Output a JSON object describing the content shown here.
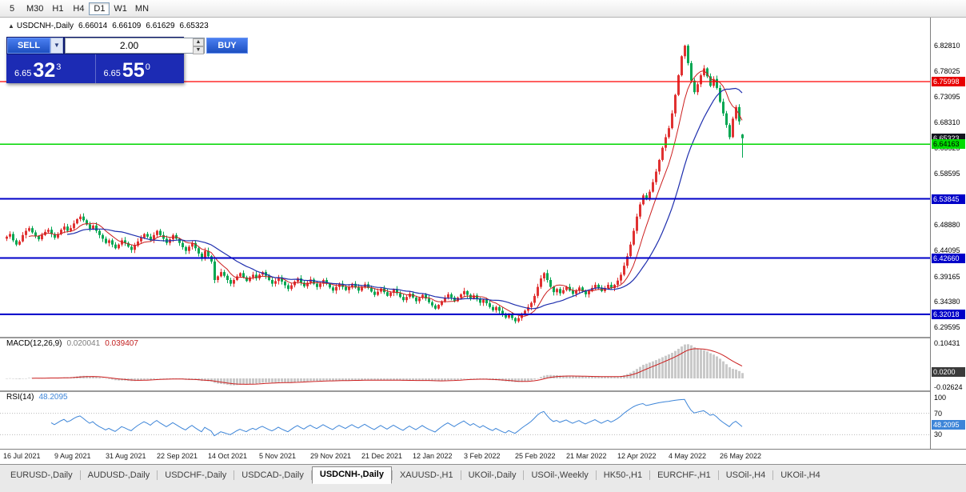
{
  "toolbar": {
    "timeframes": [
      "5",
      "M30",
      "H1",
      "H4",
      "D1",
      "W1",
      "MN"
    ],
    "active": "D1"
  },
  "chart_header": {
    "arrow": "▲",
    "title": "USDCNH-,Daily",
    "open": "6.66014",
    "high": "6.66109",
    "low": "6.61629",
    "close": "6.65323"
  },
  "trade_panel": {
    "sell_label": "SELL",
    "buy_label": "BUY",
    "volume": "2.00",
    "dropdown_glyph": "▼",
    "spin_up_glyph": "▲",
    "spin_down_glyph": "▼",
    "sell_price": {
      "prefix": "6.65",
      "big": "32",
      "sup": "3"
    },
    "buy_price": {
      "prefix": "6.65",
      "big": "55",
      "sup": "0"
    }
  },
  "price_axis": {
    "ticks": [
      "6.82810",
      "6.78025",
      "6.73095",
      "6.68310",
      "6.63525",
      "6.58595",
      "6.53845",
      "6.48880",
      "6.44095",
      "6.39165",
      "6.34380",
      "6.29595"
    ],
    "highlights": [
      {
        "text": "6.75998",
        "value": 6.75998,
        "style": "red"
      },
      {
        "text": "6.65323",
        "value": 6.65323,
        "style": "dark"
      },
      {
        "text": "6.64163",
        "value": 6.64163,
        "style": "green"
      },
      {
        "text": "6.53845",
        "value": 6.53845,
        "style": "blue"
      },
      {
        "text": "6.42660",
        "value": 6.4266,
        "style": "blue"
      },
      {
        "text": "6.32018",
        "value": 6.32018,
        "style": "blue"
      }
    ]
  },
  "macd_panel": {
    "label": "MACD(12,26,9)",
    "main_value": "0.020041",
    "signal_value": "0.039407",
    "axis_max": "0.10431",
    "axis_min": "-0.02624",
    "axis_current": "0.0200"
  },
  "rsi_panel": {
    "label": "RSI(14)",
    "value": "48.2095",
    "axis_ticks": [
      "100",
      "70",
      "30"
    ],
    "axis_current": "48.2095"
  },
  "tabs": {
    "items": [
      "EURUSD-,Daily",
      "AUDUSD-,Daily",
      "USDCHF-,Daily",
      "USDCAD-,Daily",
      "USDCNH-,Daily",
      "XAUUSD-,H1",
      "UKOil-,Daily",
      "USOil-,Weekly",
      "HK50-,H1",
      "EURCHF-,H1",
      "USOil-,H4",
      "UKOil-,H4"
    ],
    "active": "USDCNH-,Daily"
  },
  "chart_data": {
    "type": "candlestick",
    "title": "USDCNH-,Daily",
    "dates": [
      "16 Jul 2021",
      "9 Aug 2021",
      "31 Aug 2021",
      "22 Sep 2021",
      "14 Oct 2021",
      "5 Nov 2021",
      "29 Nov 2021",
      "21 Dec 2021",
      "12 Jan 2022",
      "3 Feb 2022",
      "25 Feb 2022",
      "21 Mar 2022",
      "12 Apr 2022",
      "4 May 2022",
      "26 May 2022"
    ],
    "closes": [
      6.467,
      6.472,
      6.46,
      6.452,
      6.458,
      6.47,
      6.478,
      6.483,
      6.475,
      6.468,
      6.462,
      6.47,
      6.476,
      6.48,
      6.472,
      6.465,
      6.472,
      6.48,
      6.486,
      6.478,
      6.483,
      6.492,
      6.5,
      6.505,
      6.498,
      6.49,
      6.482,
      6.488,
      6.478,
      6.47,
      6.463,
      6.455,
      6.46,
      6.452,
      6.445,
      6.452,
      6.46,
      6.455,
      6.448,
      6.442,
      6.45,
      6.458,
      6.465,
      6.472,
      6.467,
      6.46,
      6.47,
      6.478,
      6.47,
      6.463,
      6.455,
      6.462,
      6.47,
      6.463,
      6.455,
      6.447,
      6.44,
      6.448,
      6.455,
      6.445,
      6.435,
      6.425,
      6.44,
      6.43,
      6.42,
      6.385,
      6.392,
      6.4,
      6.393,
      6.385,
      6.378,
      6.385,
      6.392,
      6.398,
      6.39,
      6.383,
      6.39,
      6.395,
      6.388,
      6.395,
      6.4,
      6.393,
      6.385,
      6.378,
      6.383,
      6.39,
      6.382,
      6.375,
      6.368,
      6.375,
      6.382,
      6.388,
      6.38,
      6.373,
      6.38,
      6.386,
      6.378,
      6.372,
      6.378,
      6.385,
      6.378,
      6.371,
      6.365,
      6.372,
      6.378,
      6.372,
      6.366,
      6.372,
      6.378,
      6.371,
      6.365,
      6.371,
      6.377,
      6.37,
      6.363,
      6.357,
      6.363,
      6.369,
      6.362,
      6.355,
      6.361,
      6.367,
      6.36,
      6.353,
      6.347,
      6.353,
      6.359,
      6.352,
      6.345,
      6.351,
      6.357,
      6.35,
      6.343,
      6.337,
      6.331,
      6.338,
      6.345,
      6.352,
      6.358,
      6.352,
      6.345,
      6.352,
      6.358,
      6.364,
      6.357,
      6.35,
      6.356,
      6.349,
      6.342,
      6.348,
      6.341,
      6.334,
      6.328,
      6.334,
      6.327,
      6.32,
      6.314,
      6.32,
      6.313,
      6.307,
      6.313,
      6.32,
      6.327,
      6.334,
      6.342,
      6.355,
      6.372,
      6.388,
      6.398,
      6.385,
      6.372,
      6.362,
      6.368,
      6.36,
      6.366,
      6.372,
      6.365,
      6.359,
      6.365,
      6.371,
      6.364,
      6.358,
      6.364,
      6.37,
      6.376,
      6.37,
      6.364,
      6.37,
      6.376,
      6.37,
      6.376,
      6.384,
      6.395,
      6.412,
      6.43,
      6.452,
      6.478,
      6.505,
      6.528,
      6.545,
      6.538,
      6.552,
      6.57,
      6.59,
      6.612,
      6.635,
      6.655,
      6.672,
      6.7,
      6.735,
      6.772,
      6.808,
      6.828,
      6.795,
      6.762,
      6.74,
      6.755,
      6.772,
      6.785,
      6.77,
      6.752,
      6.765,
      6.748,
      6.722,
      6.7,
      6.678,
      6.655,
      6.69,
      6.712,
      6.685,
      6.653
    ],
    "ohlc_current": {
      "open": 6.66014,
      "high": 6.66109,
      "low": 6.61629,
      "close": 6.65323
    },
    "levels": {
      "resistance": 6.75998,
      "bid": 6.64163,
      "support": [
        6.53845,
        6.4266,
        6.32018
      ]
    },
    "y_range": [
      6.2792,
      6.881
    ],
    "macd": {
      "params": [
        12,
        26,
        9
      ],
      "last_main": 0.020041,
      "last_signal": 0.039407,
      "y_range": [
        -0.033,
        0.118
      ]
    },
    "rsi": {
      "period": 14,
      "last": 48.2095,
      "levels": [
        70,
        30
      ],
      "y_range": [
        5,
        110
      ]
    },
    "colors": {
      "up": "#e03131",
      "down": "#00a651",
      "ma_fast": "#cc1f1f",
      "ma_slow": "#1f2fae",
      "hist": "#c9c9c9",
      "signal": "#cc1f1f",
      "rsi": "#3d85d8",
      "resistance": "#ff0000",
      "bid": "#00d600",
      "support": "#0000c8"
    }
  }
}
